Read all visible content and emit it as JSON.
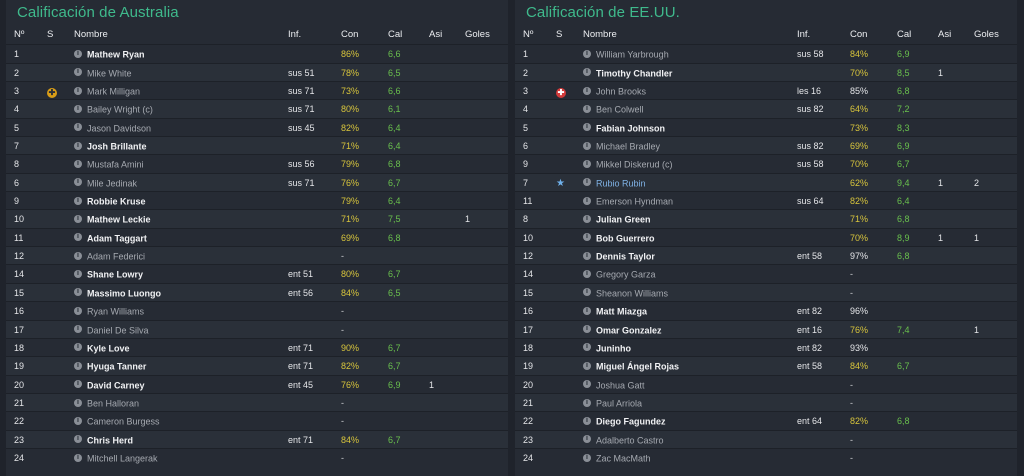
{
  "columns": {
    "num": "Nº",
    "s": "S",
    "name": "Nombre",
    "inf": "Inf.",
    "con": "Con",
    "cal": "Cal",
    "asi": "Asi",
    "goals": "Goles"
  },
  "colors": {
    "title": "#3fba8c",
    "condition": "#d8c53c",
    "rating": "#69c04d",
    "link": "#7fb2e6"
  },
  "left": {
    "title": "Calificación de Australia",
    "rows": [
      {
        "num": "1",
        "s": "",
        "name": "Mathew Ryan",
        "style": "bold",
        "inf": "",
        "con": "86%",
        "con_style": "",
        "cal": "6,6",
        "asi": "",
        "goals": ""
      },
      {
        "num": "2",
        "s": "",
        "name": "Mike White",
        "style": "dim",
        "inf": "sus 51",
        "con": "78%",
        "con_style": "",
        "cal": "6,5",
        "asi": "",
        "goals": ""
      },
      {
        "num": "3",
        "s": "injury-yellow-icon",
        "name": "Mark Milligan",
        "style": "dim",
        "inf": "sus 71",
        "con": "73%",
        "con_style": "",
        "cal": "6,6",
        "asi": "",
        "goals": ""
      },
      {
        "num": "4",
        "s": "",
        "name": "Bailey Wright (c)",
        "style": "dim",
        "inf": "sus 71",
        "con": "80%",
        "con_style": "",
        "cal": "6,1",
        "asi": "",
        "goals": ""
      },
      {
        "num": "5",
        "s": "",
        "name": "Jason Davidson",
        "style": "dim",
        "inf": "sus 45",
        "con": "82%",
        "con_style": "",
        "cal": "6,4",
        "asi": "",
        "goals": ""
      },
      {
        "num": "7",
        "s": "",
        "name": "Josh Brillante",
        "style": "bold",
        "inf": "",
        "con": "71%",
        "con_style": "",
        "cal": "6,4",
        "asi": "",
        "goals": ""
      },
      {
        "num": "8",
        "s": "",
        "name": "Mustafa Amini",
        "style": "dim",
        "inf": "sus 56",
        "con": "79%",
        "con_style": "",
        "cal": "6,8",
        "asi": "",
        "goals": ""
      },
      {
        "num": "6",
        "s": "",
        "name": "Mile Jedinak",
        "style": "dim",
        "inf": "sus 71",
        "con": "76%",
        "con_style": "",
        "cal": "6,7",
        "asi": "",
        "goals": ""
      },
      {
        "num": "9",
        "s": "",
        "name": "Robbie Kruse",
        "style": "bold",
        "inf": "",
        "con": "79%",
        "con_style": "",
        "cal": "6,4",
        "asi": "",
        "goals": ""
      },
      {
        "num": "10",
        "s": "",
        "name": "Mathew Leckie",
        "style": "bold",
        "inf": "",
        "con": "71%",
        "con_style": "",
        "cal": "7,5",
        "asi": "",
        "goals": "1"
      },
      {
        "num": "11",
        "s": "",
        "name": "Adam Taggart",
        "style": "bold",
        "inf": "",
        "con": "69%",
        "con_style": "",
        "cal": "6,8",
        "asi": "",
        "goals": ""
      },
      {
        "num": "12",
        "s": "",
        "name": "Adam Federici",
        "style": "dim",
        "inf": "",
        "con": "-",
        "con_style": "dash",
        "cal": "",
        "asi": "",
        "goals": ""
      },
      {
        "num": "14",
        "s": "",
        "name": "Shane Lowry",
        "style": "bold",
        "inf": "ent 51",
        "con": "80%",
        "con_style": "",
        "cal": "6,7",
        "asi": "",
        "goals": ""
      },
      {
        "num": "15",
        "s": "",
        "name": "Massimo Luongo",
        "style": "bold",
        "inf": "ent 56",
        "con": "84%",
        "con_style": "",
        "cal": "6,5",
        "asi": "",
        "goals": ""
      },
      {
        "num": "16",
        "s": "",
        "name": "Ryan Williams",
        "style": "dim",
        "inf": "",
        "con": "-",
        "con_style": "dash",
        "cal": "",
        "asi": "",
        "goals": ""
      },
      {
        "num": "17",
        "s": "",
        "name": "Daniel De Silva",
        "style": "dim",
        "inf": "",
        "con": "-",
        "con_style": "dash",
        "cal": "",
        "asi": "",
        "goals": ""
      },
      {
        "num": "18",
        "s": "",
        "name": "Kyle Love",
        "style": "bold",
        "inf": "ent 71",
        "con": "90%",
        "con_style": "",
        "cal": "6,7",
        "asi": "",
        "goals": ""
      },
      {
        "num": "19",
        "s": "",
        "name": "Hyuga Tanner",
        "style": "bold",
        "inf": "ent 71",
        "con": "82%",
        "con_style": "",
        "cal": "6,7",
        "asi": "",
        "goals": ""
      },
      {
        "num": "20",
        "s": "",
        "name": "David Carney",
        "style": "bold",
        "inf": "ent 45",
        "con": "76%",
        "con_style": "",
        "cal": "6,9",
        "asi": "1",
        "goals": ""
      },
      {
        "num": "21",
        "s": "",
        "name": "Ben Halloran",
        "style": "dim",
        "inf": "",
        "con": "-",
        "con_style": "dash",
        "cal": "",
        "asi": "",
        "goals": ""
      },
      {
        "num": "22",
        "s": "",
        "name": "Cameron Burgess",
        "style": "dim",
        "inf": "",
        "con": "-",
        "con_style": "dash",
        "cal": "",
        "asi": "",
        "goals": ""
      },
      {
        "num": "23",
        "s": "",
        "name": "Chris Herd",
        "style": "bold",
        "inf": "ent 71",
        "con": "84%",
        "con_style": "",
        "cal": "6,7",
        "asi": "",
        "goals": ""
      },
      {
        "num": "24",
        "s": "",
        "name": "Mitchell Langerak",
        "style": "dim",
        "inf": "",
        "con": "-",
        "con_style": "dash",
        "cal": "",
        "asi": "",
        "goals": ""
      }
    ]
  },
  "right": {
    "title": "Calificación de EE.UU.",
    "rows": [
      {
        "num": "1",
        "s": "",
        "name": "William Yarbrough",
        "style": "dim",
        "inf": "sus 58",
        "con": "84%",
        "con_style": "",
        "cal": "6,9",
        "asi": "",
        "goals": ""
      },
      {
        "num": "2",
        "s": "",
        "name": "Timothy Chandler",
        "style": "bold",
        "inf": "",
        "con": "70%",
        "con_style": "",
        "cal": "8,5",
        "asi": "1",
        "goals": ""
      },
      {
        "num": "3",
        "s": "injury-red-icon",
        "name": "John Brooks",
        "style": "dim",
        "inf": "les 16",
        "con": "85%",
        "con_style": "white",
        "cal": "6,8",
        "asi": "",
        "goals": ""
      },
      {
        "num": "4",
        "s": "",
        "name": "Ben Colwell",
        "style": "dim",
        "inf": "sus 82",
        "con": "64%",
        "con_style": "",
        "cal": "7,2",
        "asi": "",
        "goals": ""
      },
      {
        "num": "5",
        "s": "",
        "name": "Fabian Johnson",
        "style": "bold",
        "inf": "",
        "con": "73%",
        "con_style": "",
        "cal": "8,3",
        "asi": "",
        "goals": ""
      },
      {
        "num": "6",
        "s": "",
        "name": "Michael Bradley",
        "style": "dim",
        "inf": "sus 82",
        "con": "69%",
        "con_style": "",
        "cal": "6,9",
        "asi": "",
        "goals": ""
      },
      {
        "num": "9",
        "s": "",
        "name": "Mikkel Diskerud (c)",
        "style": "dim",
        "inf": "sus 58",
        "con": "70%",
        "con_style": "",
        "cal": "6,7",
        "asi": "",
        "goals": ""
      },
      {
        "num": "7",
        "s": "star-icon",
        "name": "Rubio Rubin",
        "style": "link",
        "inf": "",
        "con": "62%",
        "con_style": "",
        "cal": "9,4",
        "asi": "1",
        "goals": "2"
      },
      {
        "num": "11",
        "s": "",
        "name": "Emerson Hyndman",
        "style": "dim",
        "inf": "sus 64",
        "con": "82%",
        "con_style": "",
        "cal": "6,4",
        "asi": "",
        "goals": ""
      },
      {
        "num": "8",
        "s": "",
        "name": "Julian Green",
        "style": "bold",
        "inf": "",
        "con": "71%",
        "con_style": "",
        "cal": "6,8",
        "asi": "",
        "goals": ""
      },
      {
        "num": "10",
        "s": "",
        "name": "Bob Guerrero",
        "style": "bold",
        "inf": "",
        "con": "70%",
        "con_style": "",
        "cal": "8,9",
        "asi": "1",
        "goals": "1"
      },
      {
        "num": "12",
        "s": "",
        "name": "Dennis Taylor",
        "style": "bold",
        "inf": "ent 58",
        "con": "97%",
        "con_style": "white",
        "cal": "6,8",
        "asi": "",
        "goals": ""
      },
      {
        "num": "14",
        "s": "",
        "name": "Gregory Garza",
        "style": "dim",
        "inf": "",
        "con": "-",
        "con_style": "dash",
        "cal": "",
        "asi": "",
        "goals": ""
      },
      {
        "num": "15",
        "s": "",
        "name": "Sheanon Williams",
        "style": "dim",
        "inf": "",
        "con": "-",
        "con_style": "dash",
        "cal": "",
        "asi": "",
        "goals": ""
      },
      {
        "num": "16",
        "s": "",
        "name": "Matt Miazga",
        "style": "bold",
        "inf": "ent 82",
        "con": "96%",
        "con_style": "white",
        "cal": "",
        "asi": "",
        "goals": ""
      },
      {
        "num": "17",
        "s": "",
        "name": "Omar Gonzalez",
        "style": "bold",
        "inf": "ent 16",
        "con": "76%",
        "con_style": "",
        "cal": "7,4",
        "asi": "",
        "goals": "1"
      },
      {
        "num": "18",
        "s": "",
        "name": "Juninho",
        "style": "bold",
        "inf": "ent 82",
        "con": "93%",
        "con_style": "white",
        "cal": "",
        "asi": "",
        "goals": ""
      },
      {
        "num": "19",
        "s": "",
        "name": "Miguel Ángel Rojas",
        "style": "bold",
        "inf": "ent 58",
        "con": "84%",
        "con_style": "",
        "cal": "6,7",
        "asi": "",
        "goals": ""
      },
      {
        "num": "20",
        "s": "",
        "name": "Joshua Gatt",
        "style": "dim",
        "inf": "",
        "con": "-",
        "con_style": "dash",
        "cal": "",
        "asi": "",
        "goals": ""
      },
      {
        "num": "21",
        "s": "",
        "name": "Paul Arriola",
        "style": "dim",
        "inf": "",
        "con": "-",
        "con_style": "dash",
        "cal": "",
        "asi": "",
        "goals": ""
      },
      {
        "num": "22",
        "s": "",
        "name": "Diego Fagundez",
        "style": "bold",
        "inf": "ent 64",
        "con": "82%",
        "con_style": "",
        "cal": "6,8",
        "asi": "",
        "goals": ""
      },
      {
        "num": "23",
        "s": "",
        "name": "Adalberto Castro",
        "style": "dim",
        "inf": "",
        "con": "-",
        "con_style": "dash",
        "cal": "",
        "asi": "",
        "goals": ""
      },
      {
        "num": "24",
        "s": "",
        "name": "Zac MacMath",
        "style": "dim",
        "inf": "",
        "con": "-",
        "con_style": "dash",
        "cal": "",
        "asi": "",
        "goals": ""
      }
    ]
  }
}
